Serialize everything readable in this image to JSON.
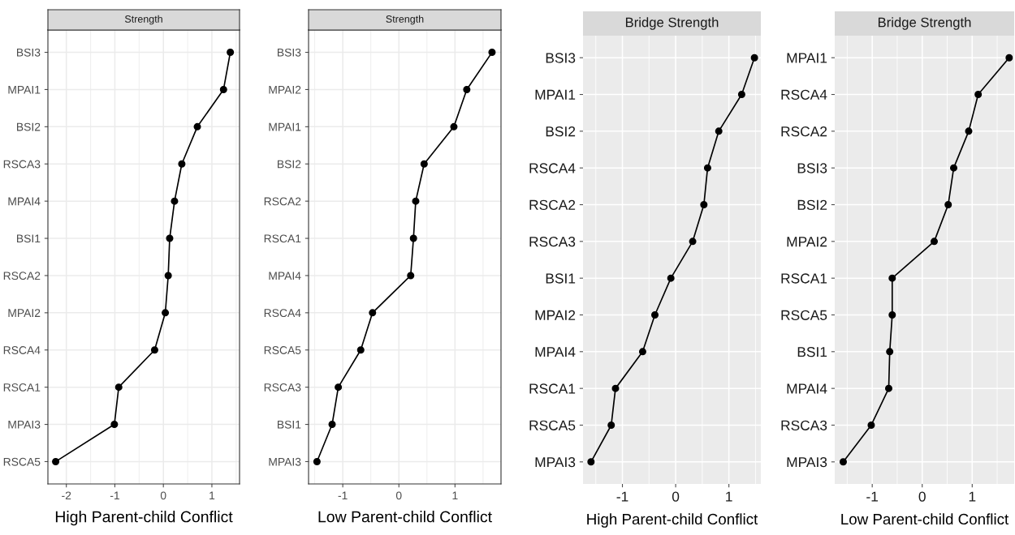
{
  "chart_data": [
    {
      "type": "line",
      "title": "Strength",
      "xlabel": "High Parent-child Conflict",
      "orientation": "horizontal",
      "categories": [
        "BSI3",
        "MPAI1",
        "BSI2",
        "RSCA3",
        "MPAI4",
        "BSI1",
        "RSCA2",
        "MPAI2",
        "RSCA4",
        "RSCA1",
        "MPAI3",
        "RSCA5"
      ],
      "series": [
        {
          "color": "#000000",
          "values": [
            1.38,
            1.24,
            0.7,
            0.38,
            0.23,
            0.13,
            0.1,
            0.04,
            -0.18,
            -0.92,
            -1.01,
            -2.22
          ]
        }
      ],
      "xlim": [
        -2.38,
        1.57
      ],
      "xticks": [
        -2,
        -1,
        0,
        1
      ],
      "grid": true,
      "marker": "circle",
      "line_style": "solid"
    },
    {
      "type": "line",
      "title": "Strength",
      "xlabel": "Low Parent-child Conflict",
      "orientation": "horizontal",
      "categories": [
        "BSI3",
        "MPAI2",
        "MPAI1",
        "BSI2",
        "RSCA2",
        "RSCA1",
        "MPAI4",
        "RSCA4",
        "RSCA5",
        "RSCA3",
        "BSI1",
        "MPAI3"
      ],
      "series": [
        {
          "color": "#000000",
          "values": [
            1.66,
            1.21,
            0.98,
            0.45,
            0.3,
            0.26,
            0.21,
            -0.47,
            -0.68,
            -1.08,
            -1.19,
            -1.46
          ]
        }
      ],
      "xlim": [
        -1.61,
        1.82
      ],
      "xticks": [
        -1,
        0,
        1
      ],
      "grid": true,
      "marker": "circle",
      "line_style": "solid"
    },
    {
      "type": "line",
      "title": "Bridge Strength",
      "xlabel": "High Parent-child Conflict",
      "orientation": "horizontal",
      "categories": [
        "BSI3",
        "MPAI1",
        "BSI2",
        "RSCA4",
        "RSCA2",
        "RSCA3",
        "BSI1",
        "MPAI2",
        "MPAI4",
        "RSCA1",
        "RSCA5",
        "MPAI3"
      ],
      "series": [
        {
          "color": "#000000",
          "values": [
            1.48,
            1.24,
            0.81,
            0.6,
            0.53,
            0.32,
            -0.09,
            -0.39,
            -0.62,
            -1.13,
            -1.21,
            -1.59
          ]
        }
      ],
      "xlim": [
        -1.74,
        1.6
      ],
      "xticks": [
        -1,
        0,
        1
      ],
      "grid": true,
      "marker": "circle",
      "line_style": "solid"
    },
    {
      "type": "line",
      "title": "Bridge Strength",
      "xlabel": "Low Parent-child Conflict",
      "orientation": "horizontal",
      "categories": [
        "MPAI1",
        "RSCA4",
        "RSCA2",
        "BSI3",
        "BSI2",
        "MPAI2",
        "RSCA1",
        "RSCA5",
        "BSI1",
        "MPAI4",
        "RSCA3",
        "MPAI3"
      ],
      "series": [
        {
          "color": "#000000",
          "values": [
            1.74,
            1.12,
            0.93,
            0.63,
            0.52,
            0.24,
            -0.6,
            -0.6,
            -0.65,
            -0.67,
            -1.02,
            -1.58
          ]
        }
      ],
      "xlim": [
        -1.75,
        1.84
      ],
      "xticks": [
        -1,
        0,
        1
      ],
      "grid": true,
      "marker": "circle",
      "line_style": "solid"
    }
  ]
}
